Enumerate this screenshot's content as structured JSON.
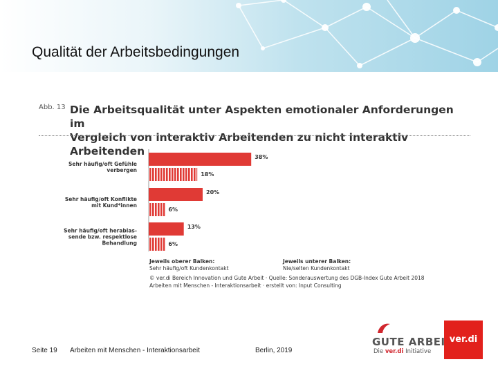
{
  "slide": {
    "title": "Qualität der Arbeitsbedingungen",
    "footer": {
      "page": "Seite 19",
      "topic": "Arbeiten mit Menschen - Interaktionsarbeit",
      "date": "Berlin, 2019"
    }
  },
  "figure": {
    "label": "Abb. 13",
    "title_line1": "Die Arbeitsqualität unter Aspekten emotionaler Anforderungen im",
    "title_line2": "Vergleich von interaktiv Arbeitenden zu nicht interaktiv Arbeitenden",
    "legend_upper_title": "Jeweils oberer Balken:",
    "legend_upper_text": "Sehr häufig/oft Kundenkontakt",
    "legend_lower_title": "Jeweils unterer Balken:",
    "legend_lower_text": "Nie/selten Kundenkontakt",
    "source_line1": "© ver.di Bereich Innovation und Gute Arbeit · Quelle: Sonderauswertung des DGB-Index Gute Arbeit 2018",
    "source_line2": "Arbeiten mit Menschen - Interaktionsarbeit · erstellt von: Input Consulting"
  },
  "chart_data": {
    "type": "bar",
    "orientation": "horizontal",
    "categories": [
      [
        "Sehr häufig/oft Gefühle",
        "verbergen"
      ],
      [
        "Sehr häufig/oft Konflikte",
        "mit Kund*innen"
      ],
      [
        "Sehr häufig/oft herablas-",
        "sende bzw. respektlose",
        "Behandlung"
      ]
    ],
    "series": [
      {
        "name": "Sehr häufig/oft Kundenkontakt",
        "values": [
          38,
          20,
          13
        ],
        "labels": [
          "38%",
          "20%",
          "13%"
        ],
        "style": "solid"
      },
      {
        "name": "Nie/selten Kundenkontakt",
        "values": [
          18,
          6,
          6
        ],
        "labels": [
          "18%",
          "6%",
          "6%"
        ],
        "style": "striped"
      }
    ],
    "xlim": [
      0,
      40
    ],
    "colors": {
      "bar": "#e03a35"
    }
  },
  "logos": {
    "gute_main": "GUTE ARBEIT",
    "gute_sub_pre": "Die",
    "gute_sub_brand": "ver.di",
    "gute_sub_post": "Initiative",
    "verdi": "ver.di"
  },
  "colors": {
    "accent_red": "#e03a35",
    "header_blue": "#9fd3e6"
  }
}
